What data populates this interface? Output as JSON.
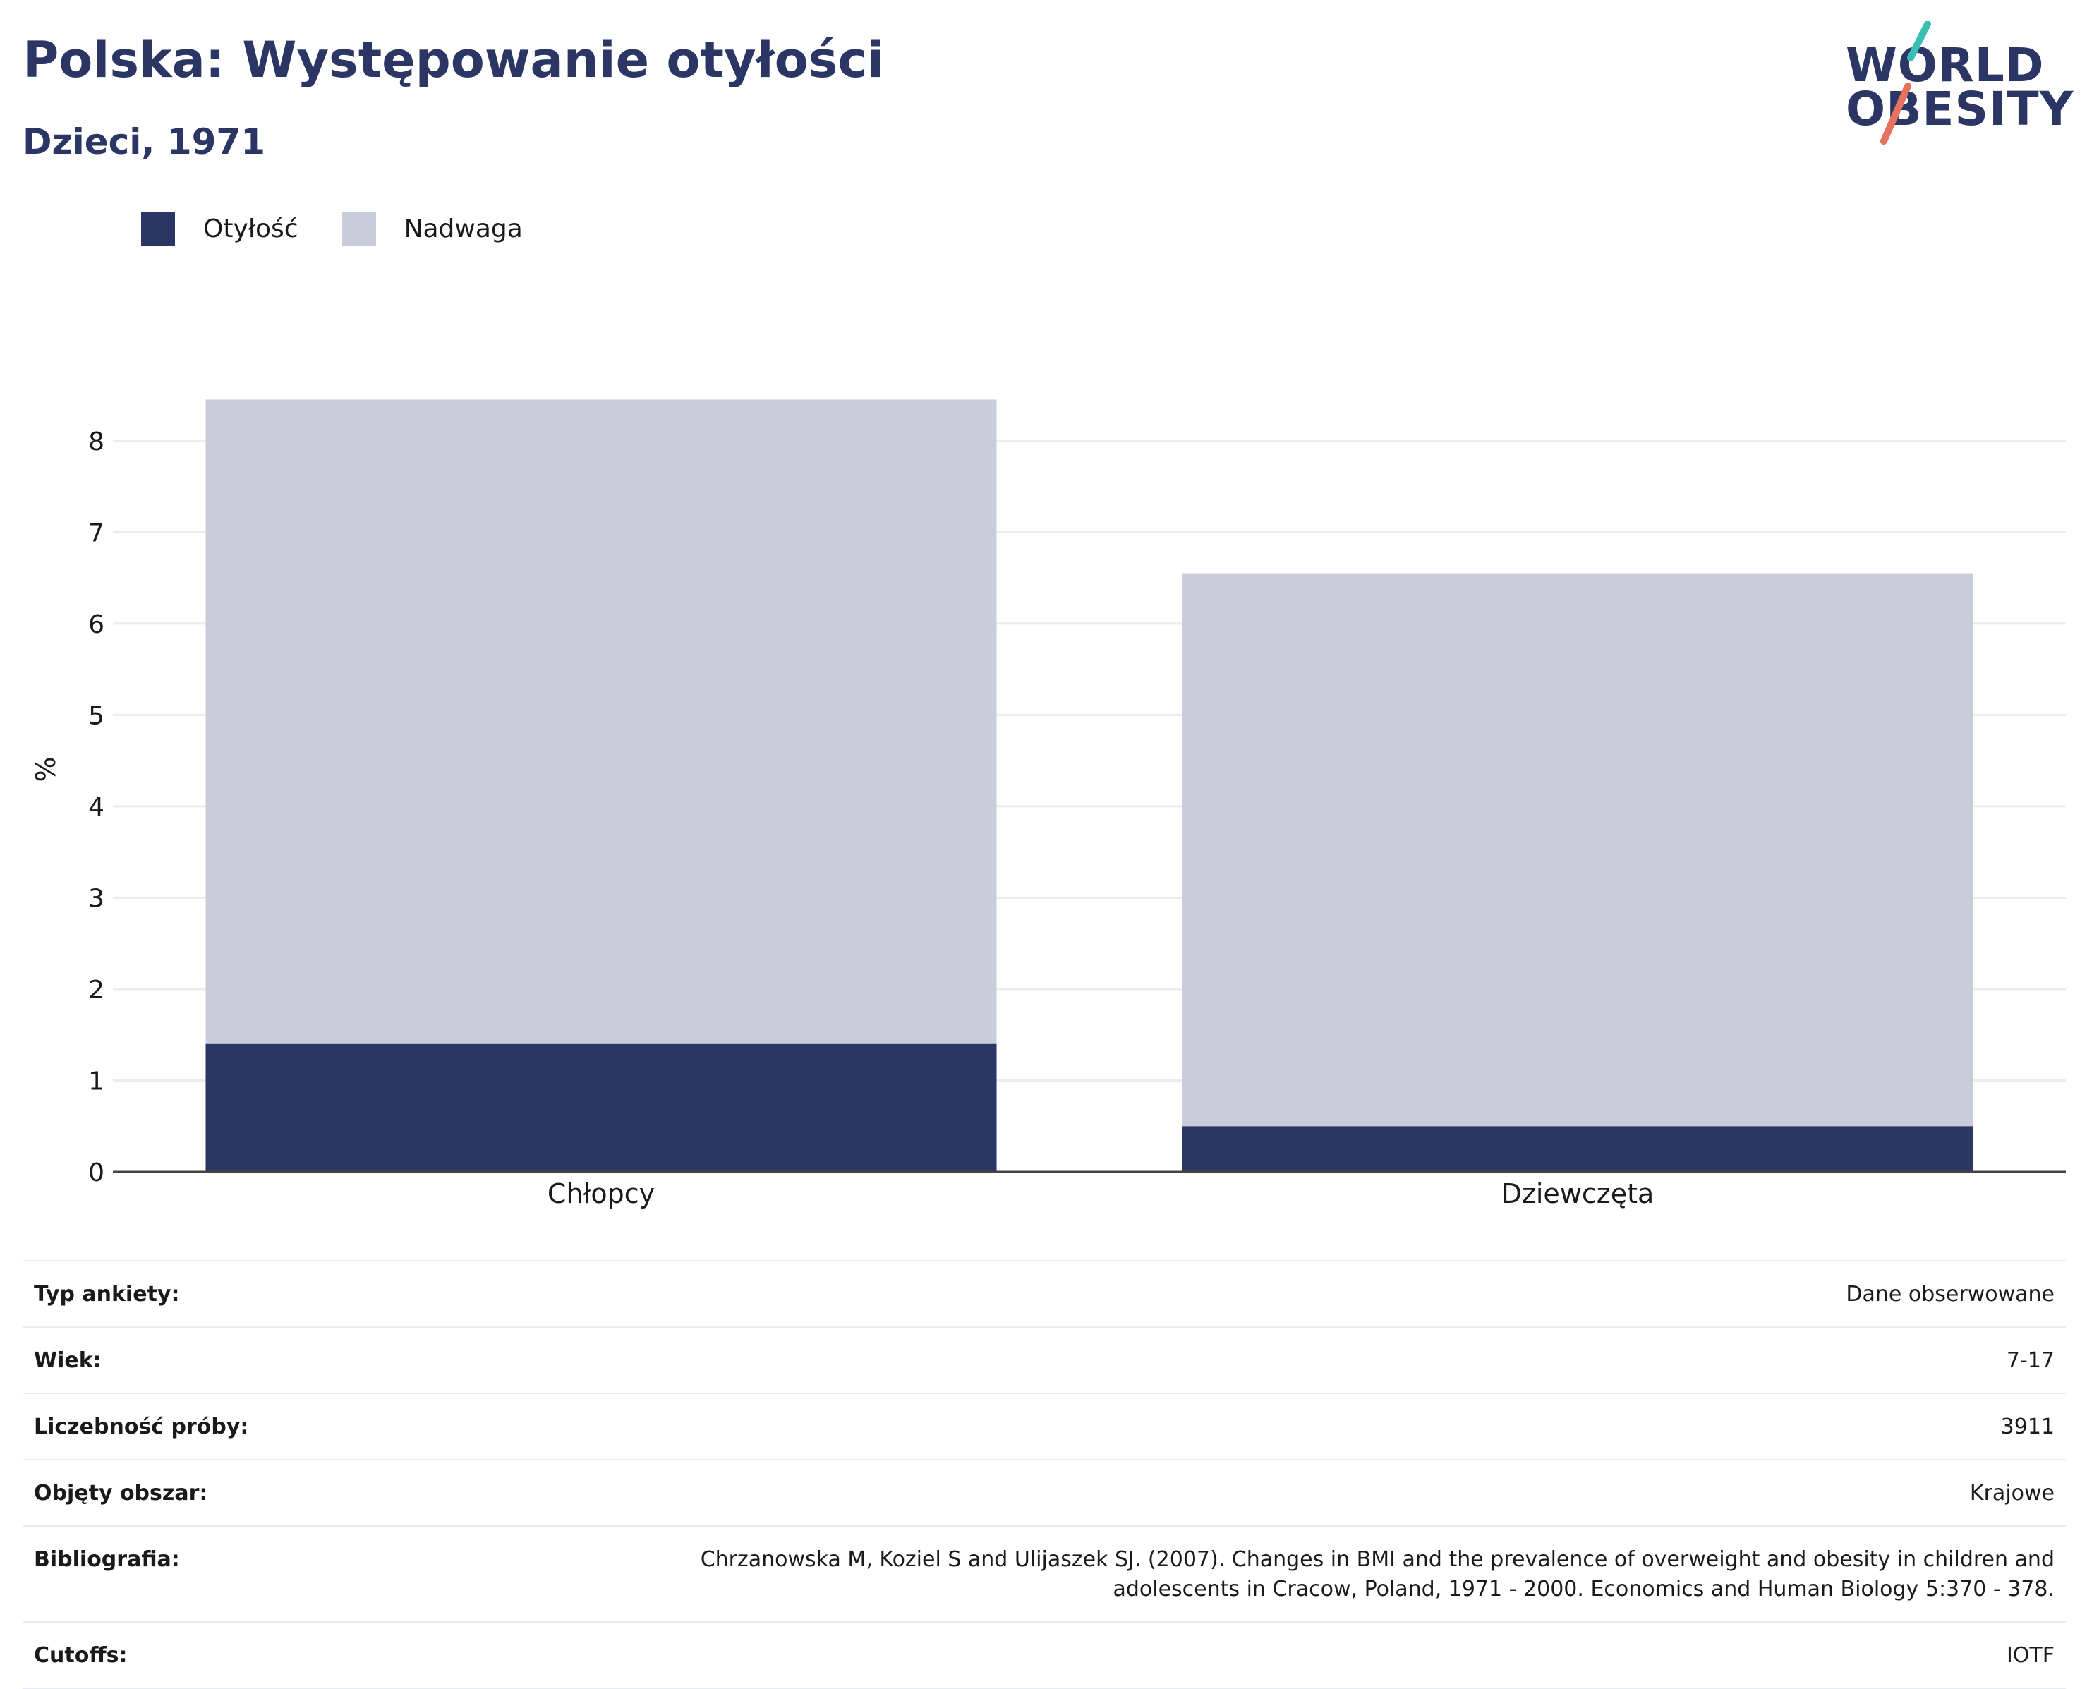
{
  "header": {
    "title": "Polska: Występowanie otyłości",
    "subtitle": "Dzieci, 1971"
  },
  "logo": {
    "line1": "WORLD",
    "line2": "OBESITY"
  },
  "colors": {
    "obesity": "#2b3664",
    "overweight": "#cacdd9",
    "accent_teal": "#3bbfb4",
    "accent_coral": "#e5725f",
    "grid": "#ebebf0",
    "axis": "#444444"
  },
  "chart_data": {
    "type": "bar",
    "stacked": true,
    "categories": [
      "Chłopcy",
      "Dziewczęta"
    ],
    "series": [
      {
        "name": "Otyłość",
        "values": [
          1.4,
          0.5
        ]
      },
      {
        "name": "Nadwaga",
        "values": [
          7.05,
          6.05
        ]
      }
    ],
    "ylabel": "%",
    "ylim": [
      0,
      8.5
    ],
    "yticks": [
      0,
      1,
      2,
      3,
      4,
      5,
      6,
      7,
      8
    ],
    "grid": true,
    "legend": "top-left"
  },
  "info": [
    {
      "label": "Typ ankiety:",
      "value": "Dane obserwowane"
    },
    {
      "label": "Wiek:",
      "value": "7-17"
    },
    {
      "label": "Liczebność próby:",
      "value": "3911"
    },
    {
      "label": "Objęty obszar:",
      "value": "Krajowe"
    },
    {
      "label": "Bibliografia:",
      "value": "Chrzanowska M, Koziel S and Ulijaszek SJ. (2007). Changes in BMI and the prevalence of overweight and obesity in children and adolescents in Cracow, Poland, 1971 - 2000. Economics and Human Biology 5:370 - 378."
    },
    {
      "label": "Cutoffs:",
      "value": "IOTF"
    }
  ]
}
